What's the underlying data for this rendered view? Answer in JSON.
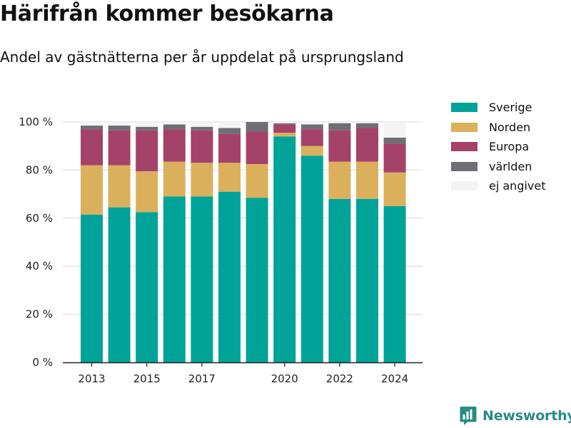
{
  "header": {
    "title": "Härifrån kommer besökarna",
    "subtitle": "Andel av gästnätterna per år uppdelat på ursprungsland"
  },
  "brand": {
    "name": "Newsworthy",
    "color": "#2a8c83",
    "logo_icon": "newsworthy-logo-icon"
  },
  "chart_data": {
    "type": "bar",
    "stacked": true,
    "categories": [
      "2013",
      "2014",
      "2015",
      "2016",
      "2017",
      "2018",
      "2019",
      "2020",
      "2021",
      "2022",
      "2023",
      "2024"
    ],
    "x_tick_labels": [
      "2013",
      "2015",
      "2017",
      "2020",
      "2022",
      "2024"
    ],
    "y_tick_labels": [
      "0 %",
      "20 %",
      "40 %",
      "60 %",
      "80 %",
      "100 %"
    ],
    "y_ticks": [
      0,
      20,
      40,
      60,
      80,
      100
    ],
    "ylim": [
      0,
      100
    ],
    "grid": true,
    "legend_position": "right",
    "series": [
      {
        "name": "Sverige",
        "color": "#00a398",
        "values": [
          61.5,
          64.5,
          62.5,
          69,
          69,
          71,
          68.5,
          94,
          86,
          68,
          68,
          65
        ]
      },
      {
        "name": "Norden",
        "color": "#dbb05d",
        "values": [
          20.5,
          17.5,
          17,
          14.5,
          14,
          12,
          14,
          1.5,
          4,
          15.5,
          15.5,
          14
        ]
      },
      {
        "name": "Europa",
        "color": "#a4426a",
        "values": [
          15,
          14.5,
          17,
          13.5,
          13.5,
          12,
          13.5,
          3.5,
          7,
          13,
          14,
          12
        ]
      },
      {
        "name": "världen",
        "color": "#6e6e74",
        "values": [
          1.5,
          2,
          1.5,
          2,
          1.5,
          2.5,
          4,
          0.5,
          2,
          3,
          2,
          2.5
        ]
      },
      {
        "name": "ej angivet",
        "color": "#f4f4f5",
        "values": [
          1.5,
          1.5,
          2,
          1,
          2,
          2.5,
          0,
          0.5,
          1,
          0.5,
          0.5,
          6.5
        ]
      }
    ]
  }
}
